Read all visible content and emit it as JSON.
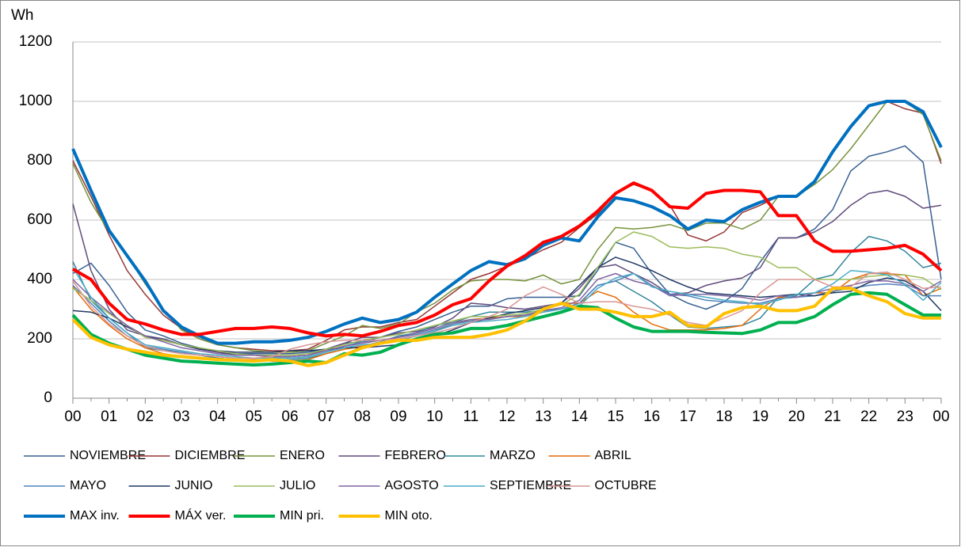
{
  "chart_data": {
    "type": "line",
    "y_label": "Wh",
    "categories": [
      "00",
      null,
      "01",
      null,
      "02",
      null,
      "03",
      null,
      "04",
      null,
      "05",
      null,
      "06",
      null,
      "07",
      null,
      "08",
      null,
      "09",
      null,
      "10",
      null,
      "11",
      null,
      "12",
      null,
      "13",
      null,
      "14",
      null,
      "15",
      null,
      "16",
      null,
      "17",
      null,
      "18",
      null,
      "19",
      null,
      "20",
      null,
      "21",
      null,
      "22",
      null,
      "23",
      null,
      "00"
    ],
    "ylim": [
      0,
      1200
    ],
    "yticks": [
      0,
      200,
      400,
      600,
      800,
      1000,
      1200
    ],
    "grid": true,
    "legend": "bottom",
    "series": [
      {
        "name": "NOVIEMBRE",
        "color": "#366092",
        "line_width": 1.5,
        "values": [
          420,
          455,
          380,
          290,
          230,
          210,
          185,
          170,
          155,
          150,
          150,
          150,
          150,
          155,
          165,
          185,
          190,
          205,
          225,
          240,
          265,
          290,
          310,
          310,
          335,
          340,
          340,
          340,
          345,
          430,
          525,
          505,
          420,
          350,
          320,
          300,
          325,
          370,
          460,
          540,
          540,
          570,
          635,
          765,
          815,
          830,
          850,
          795,
          400
        ]
      },
      {
        "name": "DICIEMBRE",
        "color": "#953735",
        "line_width": 1.5,
        "values": [
          800,
          680,
          550,
          430,
          350,
          280,
          235,
          200,
          180,
          170,
          165,
          160,
          160,
          165,
          195,
          230,
          240,
          240,
          255,
          265,
          310,
          355,
          400,
          420,
          445,
          470,
          500,
          525,
          575,
          620,
          690,
          720,
          700,
          650,
          550,
          530,
          560,
          625,
          650,
          680,
          680,
          730,
          830,
          910,
          985,
          1000,
          975,
          960,
          790
        ]
      },
      {
        "name": "ENERO",
        "color": "#77933C",
        "line_width": 1.5,
        "values": [
          790,
          660,
          560,
          480,
          385,
          300,
          230,
          200,
          180,
          170,
          160,
          155,
          155,
          160,
          185,
          210,
          245,
          235,
          250,
          290,
          320,
          365,
          395,
          400,
          400,
          395,
          415,
          385,
          400,
          500,
          575,
          570,
          575,
          585,
          565,
          590,
          590,
          570,
          600,
          680,
          680,
          720,
          770,
          840,
          920,
          1000,
          1000,
          955,
          800
        ]
      },
      {
        "name": "FEBRERO",
        "color": "#604A7B",
        "line_width": 1.5,
        "values": [
          655,
          430,
          300,
          230,
          210,
          200,
          180,
          165,
          155,
          145,
          145,
          140,
          140,
          145,
          165,
          185,
          205,
          205,
          220,
          225,
          240,
          270,
          320,
          315,
          305,
          300,
          310,
          320,
          370,
          440,
          450,
          420,
          390,
          350,
          355,
          380,
          395,
          405,
          440,
          540,
          540,
          560,
          595,
          650,
          690,
          700,
          680,
          640,
          650
        ]
      },
      {
        "name": "MARZO",
        "color": "#31859C",
        "line_width": 1.5,
        "values": [
          460,
          330,
          270,
          220,
          170,
          160,
          155,
          145,
          135,
          130,
          130,
          130,
          130,
          135,
          150,
          165,
          175,
          190,
          210,
          220,
          245,
          255,
          275,
          290,
          290,
          290,
          295,
          300,
          320,
          380,
          395,
          360,
          325,
          280,
          240,
          235,
          240,
          245,
          270,
          340,
          345,
          400,
          415,
          490,
          545,
          530,
          495,
          440,
          455
        ]
      },
      {
        "name": "ABRIL",
        "color": "#E46C0A",
        "line_width": 1.5,
        "values": [
          375,
          300,
          245,
          200,
          170,
          150,
          140,
          135,
          130,
          130,
          130,
          125,
          125,
          130,
          150,
          165,
          175,
          185,
          195,
          210,
          225,
          250,
          265,
          270,
          275,
          275,
          300,
          320,
          320,
          360,
          340,
          290,
          250,
          230,
          230,
          230,
          235,
          245,
          300,
          340,
          340,
          355,
          355,
          400,
          420,
          420,
          415,
          345,
          370
        ]
      },
      {
        "name": "MAYO",
        "color": "#4F81BD",
        "line_width": 1.5,
        "values": [
          380,
          320,
          260,
          210,
          175,
          165,
          155,
          145,
          140,
          135,
          135,
          135,
          135,
          140,
          155,
          175,
          190,
          195,
          205,
          215,
          230,
          250,
          260,
          265,
          275,
          280,
          290,
          300,
          320,
          380,
          395,
          420,
          380,
          350,
          345,
          330,
          325,
          320,
          320,
          335,
          340,
          345,
          360,
          370,
          380,
          385,
          380,
          345,
          345
        ]
      },
      {
        "name": "JUNIO",
        "color": "#1F3864",
        "line_width": 1.5,
        "values": [
          295,
          290,
          270,
          240,
          210,
          195,
          180,
          165,
          160,
          155,
          155,
          155,
          160,
          160,
          165,
          170,
          170,
          175,
          180,
          195,
          210,
          230,
          255,
          270,
          285,
          295,
          305,
          320,
          380,
          440,
          475,
          455,
          430,
          400,
          375,
          355,
          350,
          345,
          340,
          345,
          350,
          345,
          355,
          360,
          390,
          405,
          395,
          360,
          295
        ]
      },
      {
        "name": "JULIO",
        "color": "#9BBB59",
        "line_width": 1.5,
        "values": [
          370,
          330,
          285,
          245,
          205,
          195,
          180,
          170,
          160,
          150,
          145,
          145,
          145,
          150,
          165,
          180,
          195,
          205,
          215,
          230,
          245,
          260,
          275,
          275,
          280,
          285,
          300,
          315,
          350,
          440,
          525,
          560,
          545,
          510,
          505,
          510,
          505,
          485,
          475,
          440,
          440,
          400,
          400,
          400,
          410,
          415,
          415,
          405,
          365
        ]
      },
      {
        "name": "AGOSTO",
        "color": "#8064A2",
        "line_width": 1.5,
        "values": [
          400,
          340,
          290,
          245,
          210,
          190,
          170,
          160,
          150,
          145,
          145,
          140,
          140,
          145,
          160,
          175,
          185,
          195,
          205,
          220,
          235,
          255,
          265,
          265,
          275,
          280,
          295,
          305,
          330,
          400,
          420,
          395,
          380,
          345,
          350,
          350,
          345,
          340,
          330,
          345,
          340,
          355,
          370,
          380,
          395,
          395,
          385,
          360,
          395
        ]
      },
      {
        "name": "SEPTIEMBRE",
        "color": "#4BACC6",
        "line_width": 1.5,
        "values": [
          440,
          340,
          270,
          220,
          180,
          170,
          160,
          150,
          145,
          140,
          135,
          135,
          135,
          140,
          155,
          170,
          180,
          185,
          195,
          210,
          225,
          245,
          255,
          260,
          265,
          275,
          290,
          300,
          310,
          370,
          405,
          420,
          375,
          360,
          350,
          340,
          330,
          325,
          315,
          330,
          350,
          355,
          385,
          430,
          425,
          415,
          385,
          330,
          390
        ]
      },
      {
        "name": "OCTUBRE",
        "color": "#D99694",
        "line_width": 1.5,
        "values": [
          395,
          310,
          250,
          210,
          175,
          160,
          150,
          145,
          140,
          135,
          135,
          140,
          165,
          180,
          190,
          195,
          195,
          195,
          200,
          210,
          220,
          235,
          255,
          275,
          300,
          345,
          375,
          350,
          320,
          325,
          325,
          310,
          300,
          280,
          255,
          245,
          270,
          295,
          355,
          400,
          400,
          400,
          375,
          375,
          420,
          425,
          400,
          370,
          375
        ]
      },
      {
        "name": "MAX inv.",
        "color": "#0070C0",
        "line_width": 4,
        "values": [
          840,
          700,
          565,
          480,
          395,
          295,
          240,
          210,
          185,
          185,
          190,
          190,
          195,
          205,
          225,
          250,
          270,
          255,
          265,
          290,
          340,
          385,
          430,
          460,
          450,
          470,
          515,
          540,
          530,
          610,
          675,
          665,
          645,
          615,
          570,
          600,
          595,
          635,
          660,
          680,
          680,
          730,
          830,
          915,
          985,
          1000,
          1000,
          965,
          845
        ]
      },
      {
        "name": "MÁX ver.",
        "color": "#FF0000",
        "line_width": 4,
        "values": [
          435,
          400,
          320,
          265,
          250,
          230,
          215,
          215,
          225,
          235,
          235,
          240,
          235,
          220,
          210,
          215,
          210,
          225,
          245,
          255,
          280,
          315,
          335,
          395,
          445,
          480,
          525,
          545,
          580,
          630,
          690,
          725,
          700,
          645,
          640,
          690,
          700,
          700,
          695,
          615,
          615,
          530,
          495,
          495,
          500,
          505,
          515,
          485,
          430
        ]
      },
      {
        "name": "MIN pri.",
        "color": "#00B050",
        "line_width": 4,
        "values": [
          280,
          215,
          185,
          165,
          145,
          135,
          125,
          122,
          118,
          115,
          112,
          115,
          120,
          125,
          120,
          150,
          145,
          155,
          180,
          200,
          215,
          220,
          235,
          235,
          245,
          260,
          275,
          290,
          310,
          305,
          270,
          240,
          225,
          225,
          225,
          222,
          220,
          218,
          230,
          255,
          255,
          275,
          315,
          350,
          355,
          350,
          315,
          280,
          280
        ]
      },
      {
        "name": "MIN oto.",
        "color": "#FFC000",
        "line_width": 4,
        "values": [
          265,
          205,
          180,
          165,
          155,
          145,
          140,
          135,
          130,
          128,
          125,
          130,
          125,
          110,
          120,
          145,
          170,
          185,
          195,
          195,
          205,
          205,
          205,
          215,
          230,
          260,
          300,
          320,
          300,
          300,
          290,
          275,
          275,
          290,
          245,
          240,
          285,
          305,
          310,
          295,
          295,
          310,
          370,
          370,
          345,
          325,
          285,
          270,
          270
        ]
      }
    ]
  }
}
